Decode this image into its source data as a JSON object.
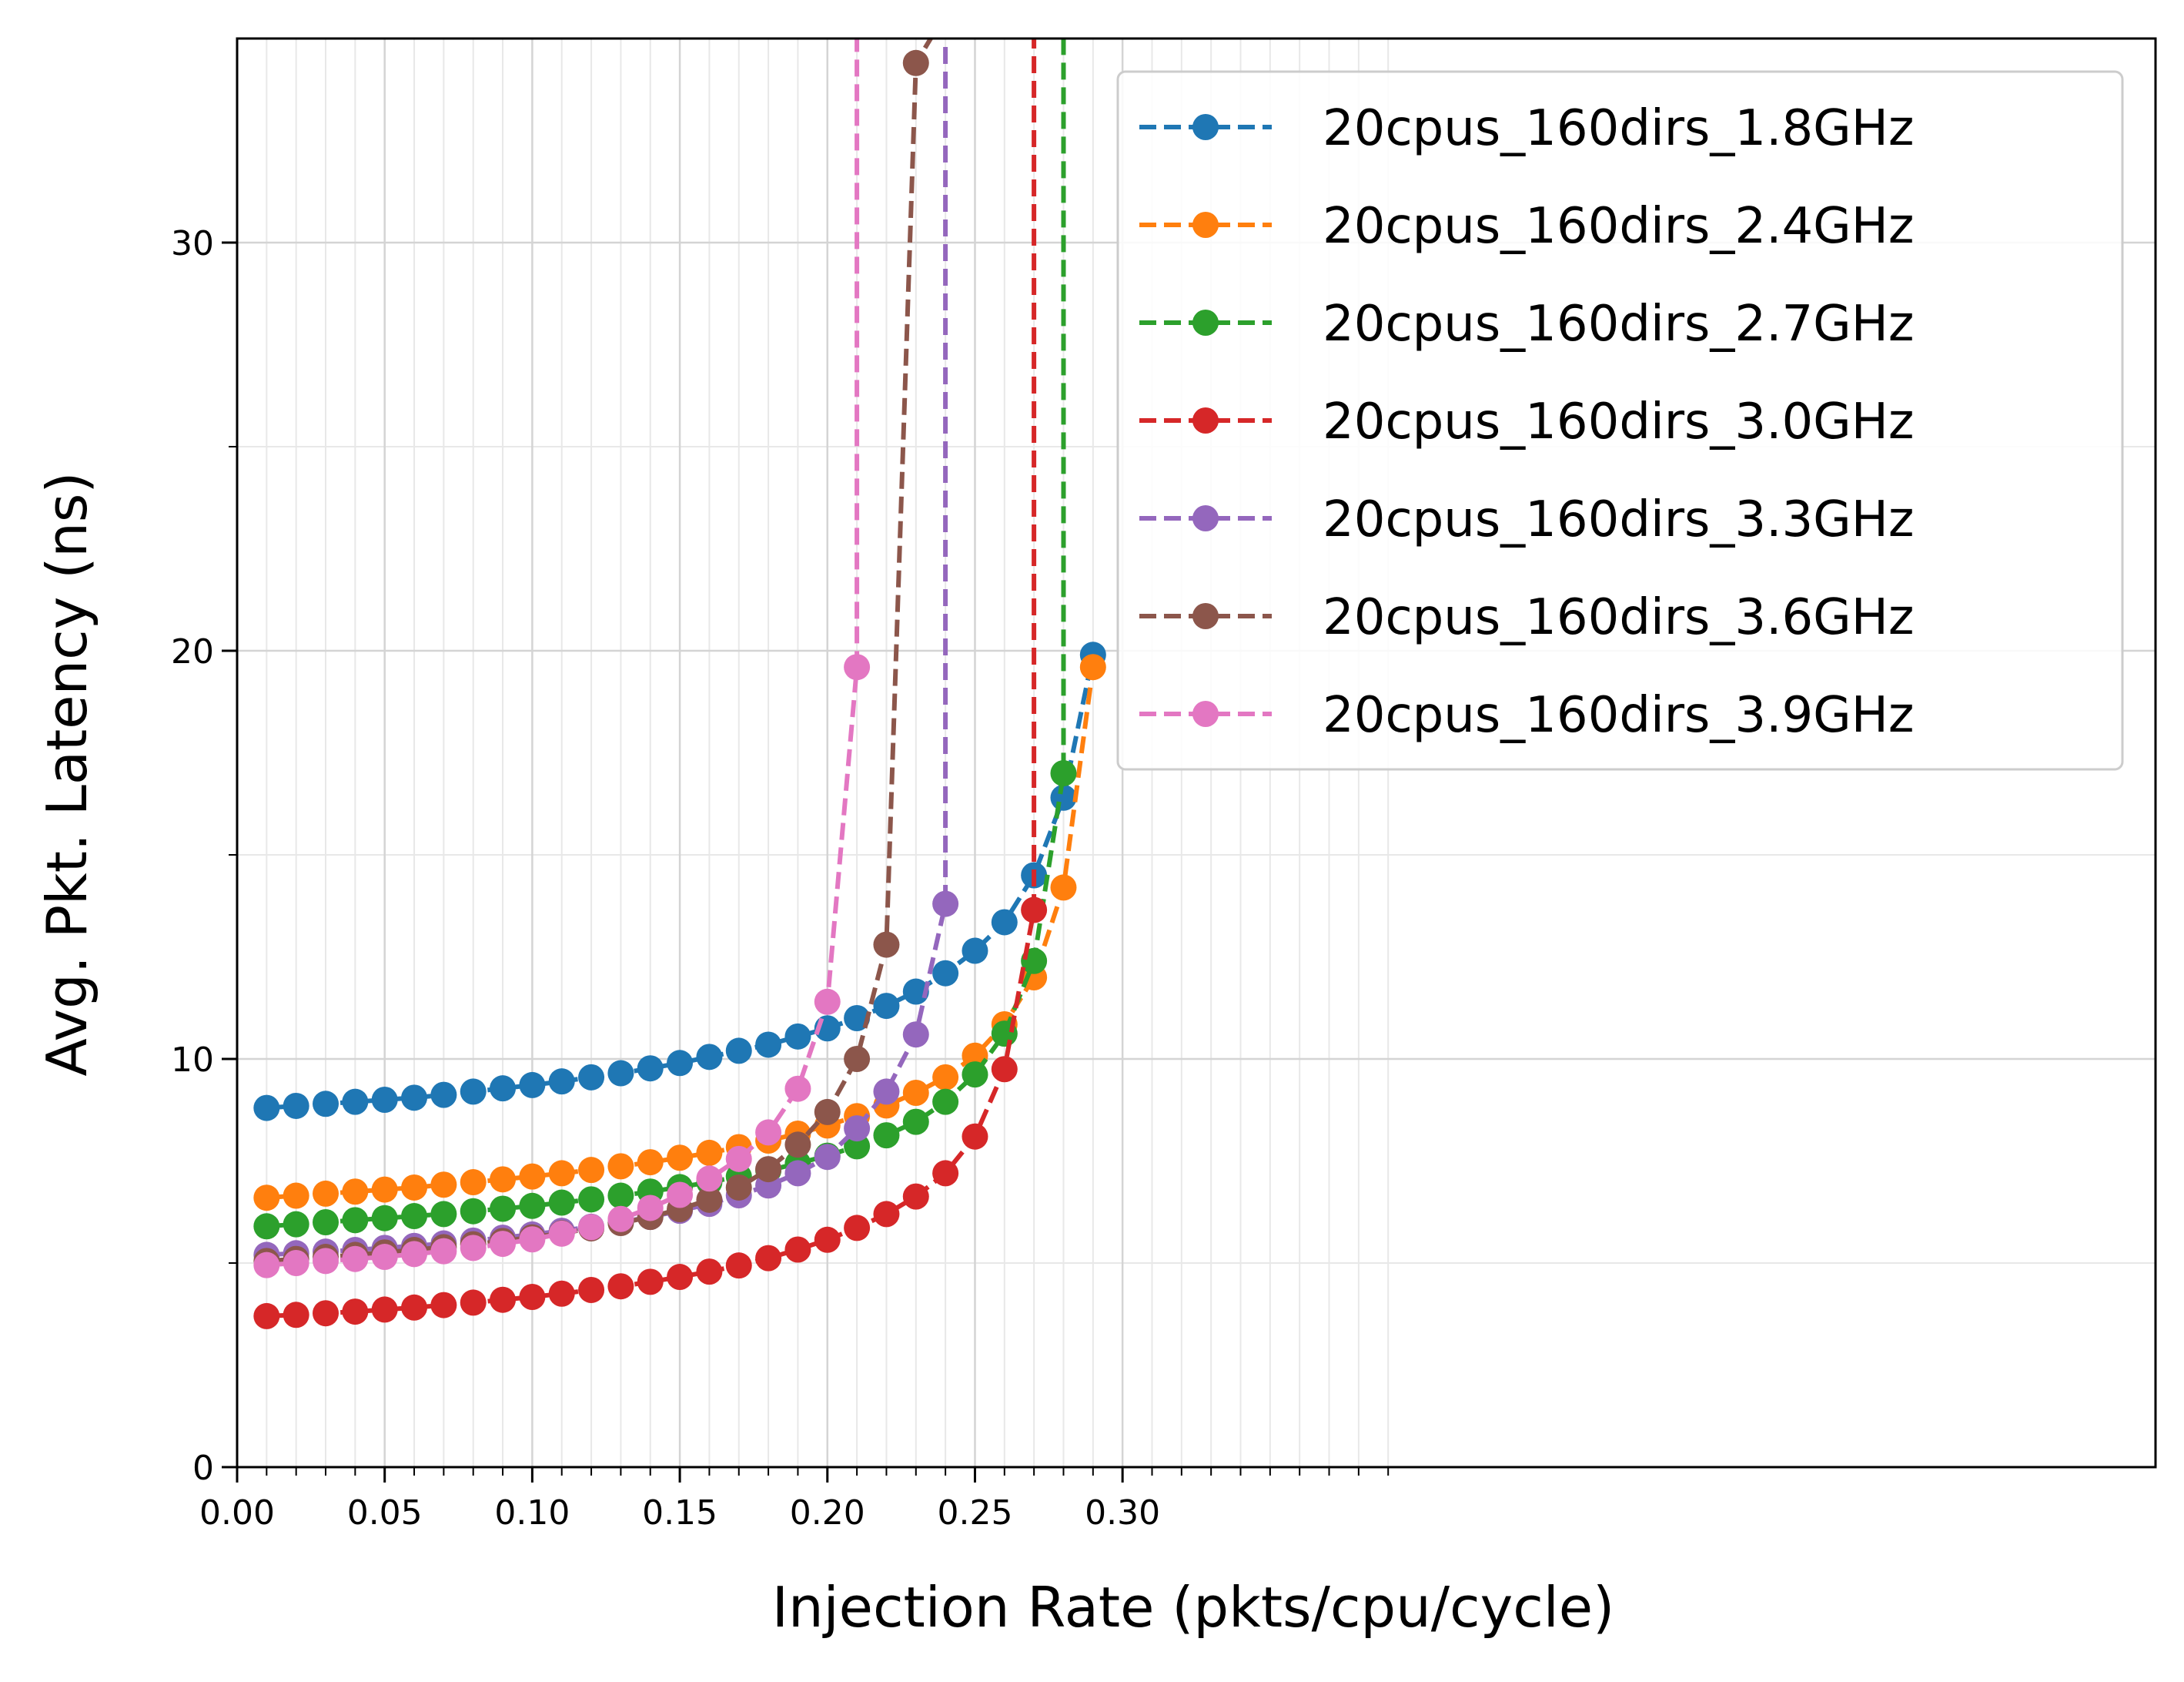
{
  "chart_data": {
    "type": "line",
    "xlabel": "Injection Rate  (pkts/cpu/cycle)",
    "ylabel": "Avg. Pkt. Latency (ns)",
    "xlim": [
      0.0,
      0.65
    ],
    "ylim": [
      0,
      35
    ],
    "xticks": [
      0.0,
      0.05,
      0.1,
      0.15,
      0.2,
      0.25,
      0.3
    ],
    "xtick_labels": [
      "0.00",
      "0.05",
      "0.10",
      "0.15",
      "0.20",
      "0.25",
      "0.30"
    ],
    "xminor_ticks": [
      0.01,
      0.02,
      0.03,
      0.04,
      0.06,
      0.07,
      0.08,
      0.09,
      0.11,
      0.12,
      0.13,
      0.14,
      0.16,
      0.17,
      0.18,
      0.19,
      0.21,
      0.22,
      0.23,
      0.24,
      0.26,
      0.27,
      0.28,
      0.29,
      0.31,
      0.32,
      0.33,
      0.34,
      0.35,
      0.36,
      0.37,
      0.38,
      0.39
    ],
    "yticks": [
      0,
      10,
      20,
      30
    ],
    "ytick_labels": [
      "0",
      "10",
      "20",
      "30"
    ],
    "yminor_ticks": [
      5,
      15,
      25
    ],
    "grid": true,
    "legend_position": "top-right",
    "series": [
      {
        "name": "20cpus_160dirs_1.8GHz",
        "color": "#1f77b4",
        "x": [
          0.01,
          0.02,
          0.03,
          0.04,
          0.05,
          0.06,
          0.07,
          0.08,
          0.09,
          0.1,
          0.11,
          0.12,
          0.13,
          0.14,
          0.15,
          0.16,
          0.17,
          0.18,
          0.19,
          0.2,
          0.21,
          0.22,
          0.23,
          0.24,
          0.25,
          0.26,
          0.27,
          0.28,
          0.29
        ],
        "y": [
          8.8,
          8.85,
          8.9,
          8.95,
          9.0,
          9.05,
          9.12,
          9.2,
          9.28,
          9.36,
          9.45,
          9.55,
          9.65,
          9.77,
          9.9,
          10.05,
          10.2,
          10.35,
          10.55,
          10.75,
          11.0,
          11.3,
          11.65,
          12.1,
          12.65,
          13.35,
          14.5,
          16.4,
          19.9
        ]
      },
      {
        "name": "20cpus_160dirs_2.4GHz",
        "color": "#ff7f0e",
        "x": [
          0.01,
          0.02,
          0.03,
          0.04,
          0.05,
          0.06,
          0.07,
          0.08,
          0.09,
          0.1,
          0.11,
          0.12,
          0.13,
          0.14,
          0.15,
          0.16,
          0.17,
          0.18,
          0.19,
          0.2,
          0.21,
          0.22,
          0.23,
          0.24,
          0.25,
          0.26,
          0.27,
          0.28,
          0.29
        ],
        "y": [
          6.6,
          6.65,
          6.7,
          6.75,
          6.8,
          6.85,
          6.92,
          6.98,
          7.05,
          7.12,
          7.2,
          7.28,
          7.37,
          7.47,
          7.58,
          7.7,
          7.84,
          8.0,
          8.17,
          8.37,
          8.6,
          8.86,
          9.17,
          9.55,
          10.08,
          10.85,
          12.0,
          14.2,
          19.6
        ]
      },
      {
        "name": "20cpus_160dirs_2.7GHz",
        "color": "#2ca02c",
        "x": [
          0.01,
          0.02,
          0.03,
          0.04,
          0.05,
          0.06,
          0.07,
          0.08,
          0.09,
          0.1,
          0.11,
          0.12,
          0.13,
          0.14,
          0.15,
          0.16,
          0.17,
          0.18,
          0.19,
          0.2,
          0.21,
          0.22,
          0.23,
          0.24,
          0.25,
          0.26,
          0.27,
          0.28,
          0.28
        ],
        "y": [
          5.9,
          5.95,
          6.0,
          6.05,
          6.1,
          6.15,
          6.2,
          6.27,
          6.33,
          6.4,
          6.48,
          6.56,
          6.65,
          6.75,
          6.86,
          6.98,
          7.12,
          7.27,
          7.44,
          7.63,
          7.86,
          8.13,
          8.46,
          8.95,
          9.62,
          10.62,
          12.4,
          17.0,
          35.0
        ],
        "marker_points": 28
      },
      {
        "name": "20cpus_160dirs_3.0GHz",
        "color": "#d62728",
        "x": [
          0.01,
          0.02,
          0.03,
          0.04,
          0.05,
          0.06,
          0.07,
          0.08,
          0.09,
          0.1,
          0.11,
          0.12,
          0.13,
          0.14,
          0.15,
          0.16,
          0.17,
          0.18,
          0.19,
          0.2,
          0.21,
          0.22,
          0.23,
          0.24,
          0.25,
          0.26,
          0.27,
          0.27
        ],
        "y": [
          3.7,
          3.73,
          3.77,
          3.81,
          3.86,
          3.91,
          3.97,
          4.03,
          4.1,
          4.17,
          4.25,
          4.34,
          4.43,
          4.54,
          4.66,
          4.79,
          4.94,
          5.12,
          5.33,
          5.57,
          5.86,
          6.2,
          6.63,
          7.2,
          8.1,
          9.75,
          13.65,
          35.0
        ],
        "marker_points": 27
      },
      {
        "name": "20cpus_160dirs_3.3GHz",
        "color": "#9467bd",
        "x": [
          0.01,
          0.02,
          0.03,
          0.04,
          0.05,
          0.06,
          0.07,
          0.08,
          0.09,
          0.1,
          0.11,
          0.12,
          0.13,
          0.14,
          0.15,
          0.16,
          0.17,
          0.18,
          0.19,
          0.2,
          0.21,
          0.22,
          0.23,
          0.24,
          0.24
        ],
        "y": [
          5.2,
          5.24,
          5.28,
          5.32,
          5.37,
          5.42,
          5.48,
          5.55,
          5.62,
          5.7,
          5.79,
          5.89,
          6.0,
          6.13,
          6.28,
          6.45,
          6.66,
          6.9,
          7.2,
          7.6,
          8.3,
          9.2,
          10.6,
          13.8,
          35.0
        ],
        "marker_points": 24
      },
      {
        "name": "20cpus_160dirs_3.6GHz",
        "color": "#8c564b",
        "x": [
          0.01,
          0.02,
          0.03,
          0.04,
          0.05,
          0.06,
          0.07,
          0.08,
          0.09,
          0.1,
          0.11,
          0.12,
          0.13,
          0.14,
          0.15,
          0.16,
          0.17,
          0.18,
          0.19,
          0.2,
          0.21,
          0.22,
          0.23,
          0.235
        ],
        "y": [
          5.05,
          5.1,
          5.15,
          5.2,
          5.26,
          5.32,
          5.39,
          5.46,
          5.54,
          5.63,
          5.73,
          5.85,
          5.98,
          6.13,
          6.32,
          6.55,
          6.85,
          7.3,
          7.9,
          8.7,
          10.0,
          12.8,
          34.4,
          35.0
        ],
        "marker_points": 23
      },
      {
        "name": "20cpus_160dirs_3.9GHz",
        "color": "#e377c2",
        "x": [
          0.01,
          0.02,
          0.03,
          0.04,
          0.05,
          0.06,
          0.07,
          0.08,
          0.09,
          0.1,
          0.11,
          0.12,
          0.13,
          0.14,
          0.15,
          0.16,
          0.17,
          0.18,
          0.19,
          0.2,
          0.21,
          0.21
        ],
        "y": [
          4.95,
          5.0,
          5.05,
          5.1,
          5.15,
          5.22,
          5.29,
          5.37,
          5.47,
          5.58,
          5.72,
          5.88,
          6.08,
          6.35,
          6.67,
          7.07,
          7.55,
          8.2,
          9.27,
          11.4,
          19.6,
          35.0
        ],
        "marker_points": 21
      }
    ]
  }
}
